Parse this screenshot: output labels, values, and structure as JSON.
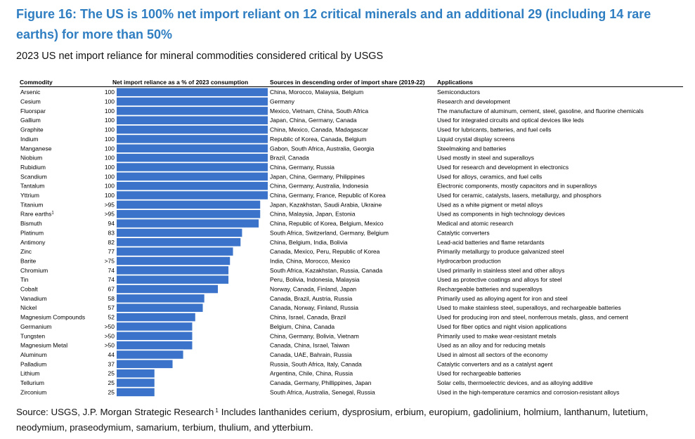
{
  "title": "Figure 16: The US is 100% net import reliant on 12 critical minerals and an additional 29 (including 14 rare earths) for more than 50%",
  "subtitle": "2023 US net import reliance for mineral commodities considered critical by USGS",
  "source": {
    "text": "Source: USGS, J.P. Morgan Strategic Research",
    "footnote_marker": "1",
    "footnote": "Includes lanthanides cerium, dysprosium, erbium, europium, gadolinium, holmium, lanthanum, lutetium, neodymium, praseodymium, samarium, terbium, thulium, and ytterbium."
  },
  "colors": {
    "title": "#2f7ec2",
    "bar": "#3a73c9",
    "rule": "#000000"
  },
  "chart_data": {
    "type": "bar",
    "orientation": "horizontal",
    "headers": {
      "commodity": "Commodity",
      "value": "Net import reliance as a % of 2023 consumption",
      "sources": "Sources in descending order of import share (2019-22)",
      "applications": "Applications"
    },
    "xlim": [
      0,
      100
    ],
    "categories": [
      "Arsenic",
      "Cesium",
      "Fluorspar",
      "Gallium",
      "Graphite",
      "Indium",
      "Manganese",
      "Niobium",
      "Rubidium",
      "Scandium",
      "Tantalum",
      "Yttrium",
      "Titanium",
      "Rare earths",
      "Bismuth",
      "Platinum",
      "Antimony",
      "Zinc",
      "Barite",
      "Chromium",
      "Tin",
      "Cobalt",
      "Vanadium",
      "Nickel",
      "Magnesium Compounds",
      "Germanium",
      "Tungsten",
      "Magnesium Metal",
      "Aluminum",
      "Palladium",
      "Lithium",
      "Tellurium",
      "Zirconium"
    ],
    "category_superscripts": {
      "Rare earths": "1"
    },
    "values": [
      100,
      100,
      100,
      100,
      100,
      100,
      100,
      100,
      100,
      100,
      100,
      100,
      95,
      95,
      94,
      83,
      82,
      77,
      75,
      74,
      74,
      67,
      58,
      57,
      52,
      50,
      50,
      50,
      44,
      37,
      25,
      25,
      25
    ],
    "value_labels": [
      "100",
      "100",
      "100",
      "100",
      "100",
      "100",
      "100",
      "100",
      "100",
      "100",
      "100",
      "100",
      ">95",
      ">95",
      "94",
      "83",
      "82",
      "77",
      ">75",
      "74",
      "74",
      "67",
      "58",
      "57",
      "52",
      ">50",
      ">50",
      ">50",
      "44",
      "37",
      "25",
      "25",
      "25"
    ],
    "sources": [
      "China, Morocco, Malaysia, Belgium",
      "Germany",
      "Mexico, Vietnam, China, South Africa",
      "Japan, China, Germany, Canada",
      "China, Mexico, Canada, Madagascar",
      "Republic of Korea, Canada, Belgium",
      "Gabon, South Africa, Australia, Georgia",
      "Brazil, Canada",
      "China, Germany, Russia",
      "Japan, China, Germany, Philippines",
      "China, Germany, Australia, Indonesia",
      "China, Germany, France, Republic of Korea",
      "Japan, Kazakhstan, Saudi Arabia, Ukraine",
      "China, Malaysia, Japan, Estonia",
      "China, Republic of Korea, Belgium, Mexico",
      "South Africa, Switzerland, Germany, Belgium",
      "China, Belgium, India, Bolivia",
      "Canada, Mexico, Peru, Republic of Korea",
      "India, China, Morocco, Mexico",
      "South Africa, Kazakhstan, Russia, Canada",
      "Peru, Bolivia, Indonesia, Malaysia",
      "Norway, Canada, Finland, Japan",
      "Canada, Brazil, Austria, Russia",
      "Canada, Norway, Finland, Russia",
      "China, Israel, Canada, Brazil",
      "Belgium, China, Canada",
      "China, Germany, Bolivia, Vietnam",
      "Canada, China, Israel, Taiwan",
      "Canada, UAE, Bahrain, Russia",
      "Russia, South Africa, Italy, Canada",
      "Argentina, Chile, China, Russia",
      "Canada, Germany, Phillippines, Japan",
      "South Africa, Australia, Senegal, Russia"
    ],
    "applications": [
      "Semiconductors",
      "Research and development",
      "The manufacture of aluminum, cement, steel, gasoline, and fluorine chemicals",
      "Used for integrated circuits and optical devices like leds",
      "Used for lubricants, batteries, and fuel cells",
      "Liquid crystal display screens",
      "Steelmaking and batteries",
      "Used mostly in steel and superalloys",
      "Used for research and development in electronics",
      "Used for alloys, ceramics, and fuel cells",
      "Electronic components, mostly capacitors and in superalloys",
      "Used for ceramic, catalysts, lasers, metallurgy, and phosphors",
      "Used as a white pigment or metal alloys",
      "Used as components in high technology devices",
      "Medical and atomic research",
      "Catalytic converters",
      "Lead-acid batteries and flame retardants",
      "Primarily metallurgy to produce galvanized steel",
      "Hydrocarbon production",
      "Used primarily in stainless steel and other alloys",
      "Used as protective coatings and alloys for steel",
      "Rechargeable batteries and superalloys",
      "Primarily used as alloying agent for iron and steel",
      "Used to make stainless steel, superalloys, and rechargeable batteries",
      "Used for producing iron and steel, nonferrous metals, glass, and cement",
      "Used for fiber optics and night vision applications",
      "Primarily used to make wear-resistant metals",
      "Used as an alloy and for reducing metals",
      "Used in almost all sectors of the economy",
      "Catalytic converters and as a catalyst agent",
      "Used for rechargeable batteries",
      "Solar cells, thermoelectric devices, and as alloying additive",
      "Used in the high-temperature ceramics and corrosion-resistant alloys"
    ]
  }
}
